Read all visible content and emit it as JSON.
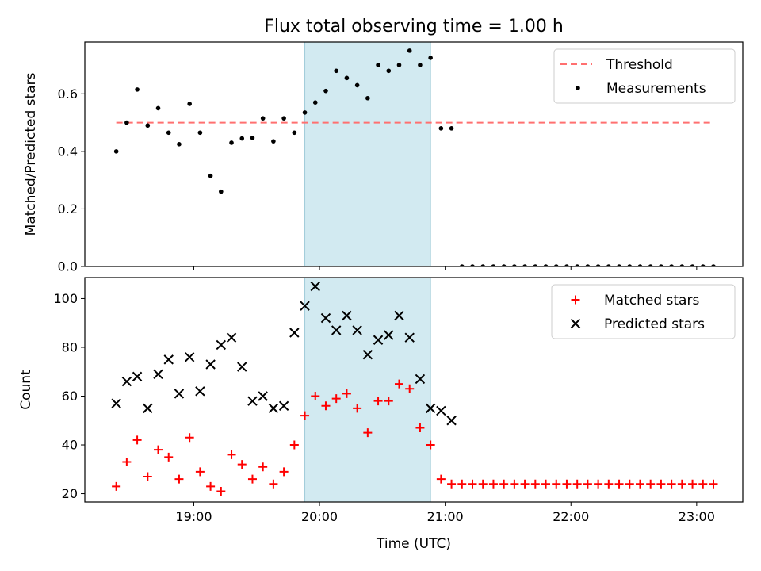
{
  "title": "Flux total observing time = 1.00 h",
  "colors": {
    "threshold": "#ff7070",
    "measurements": "#000000",
    "matched": "#ff0000",
    "predicted": "#000000",
    "highlight": "#add8e6"
  },
  "chart_data": [
    {
      "type": "scatter",
      "ylabel": "Matched/Predicted stars",
      "ylim": [
        0,
        0.78
      ],
      "yticks": [
        0.0,
        0.2,
        0.4,
        0.6
      ],
      "ytick_labels": [
        "0.0",
        "0.2",
        "0.4",
        "0.6"
      ],
      "xlim": [
        "18:08",
        "23:22"
      ],
      "highlight_span": [
        "19:53",
        "20:53"
      ],
      "legend_position": "top-right",
      "threshold": {
        "name": "Threshold",
        "value": 0.5,
        "x": [
          "18:23",
          "23:08"
        ]
      },
      "series": [
        {
          "name": "Measurements",
          "marker": "dot",
          "x": [
            "18:23",
            "18:28",
            "18:33",
            "18:38",
            "18:43",
            "18:48",
            "18:53",
            "18:58",
            "19:03",
            "19:08",
            "19:13",
            "19:18",
            "19:23",
            "19:28",
            "19:33",
            "19:38",
            "19:43",
            "19:48",
            "19:53",
            "19:58",
            "20:03",
            "20:08",
            "20:13",
            "20:18",
            "20:23",
            "20:28",
            "20:33",
            "20:38",
            "20:43",
            "20:48",
            "20:53",
            "20:58",
            "21:03",
            "21:08",
            "21:13",
            "21:18",
            "21:23",
            "21:28",
            "21:33",
            "21:38",
            "21:43",
            "21:48",
            "21:53",
            "21:58",
            "22:03",
            "22:08",
            "22:13",
            "22:18",
            "22:23",
            "22:28",
            "22:33",
            "22:38",
            "22:43",
            "22:48",
            "22:53",
            "22:58",
            "23:03",
            "23:08"
          ],
          "values": [
            0.4,
            0.5,
            0.615,
            0.49,
            0.55,
            0.465,
            0.425,
            0.565,
            0.465,
            0.315,
            0.26,
            0.43,
            0.445,
            0.447,
            0.515,
            0.435,
            0.515,
            0.465,
            0.535,
            0.57,
            0.61,
            0.68,
            0.655,
            0.63,
            0.585,
            0.7,
            0.68,
            0.7,
            0.75,
            0.7,
            0.725,
            0.48,
            0.48,
            0,
            0,
            0,
            0,
            0,
            0,
            0,
            0,
            0,
            0,
            0,
            0,
            0,
            0,
            0,
            0,
            0,
            0,
            0,
            0,
            0,
            0,
            0,
            0,
            0
          ]
        }
      ]
    },
    {
      "type": "scatter",
      "ylabel": "Count",
      "xlabel": "Time (UTC)",
      "ylim": [
        16.6,
        108.6
      ],
      "yticks": [
        20,
        40,
        60,
        80,
        100
      ],
      "ytick_labels": [
        "20",
        "40",
        "60",
        "80",
        "100"
      ],
      "xlim": [
        "18:08",
        "23:22"
      ],
      "xticks": [
        "19:00",
        "20:00",
        "21:00",
        "22:00",
        "23:00"
      ],
      "xtick_labels": [
        "19:00",
        "20:00",
        "21:00",
        "22:00",
        "23:00"
      ],
      "highlight_span": [
        "19:53",
        "20:53"
      ],
      "legend_position": "top-right",
      "series": [
        {
          "name": "Matched stars",
          "marker": "plus",
          "x": [
            "18:23",
            "18:28",
            "18:33",
            "18:38",
            "18:43",
            "18:48",
            "18:53",
            "18:58",
            "19:03",
            "19:08",
            "19:13",
            "19:18",
            "19:23",
            "19:28",
            "19:33",
            "19:38",
            "19:43",
            "19:48",
            "19:53",
            "19:58",
            "20:03",
            "20:08",
            "20:13",
            "20:18",
            "20:23",
            "20:28",
            "20:33",
            "20:38",
            "20:43",
            "20:48",
            "20:53",
            "20:58",
            "21:03",
            "21:08",
            "21:13",
            "21:18",
            "21:23",
            "21:28",
            "21:33",
            "21:38",
            "21:43",
            "21:48",
            "21:53",
            "21:58",
            "22:03",
            "22:08",
            "22:13",
            "22:18",
            "22:23",
            "22:28",
            "22:33",
            "22:38",
            "22:43",
            "22:48",
            "22:53",
            "22:58",
            "23:03",
            "23:08"
          ],
          "values": [
            23,
            33,
            42,
            27,
            38,
            35,
            26,
            43,
            29,
            23,
            21,
            36,
            32,
            26,
            31,
            24,
            29,
            40,
            52,
            60,
            56,
            59,
            61,
            55,
            45,
            58,
            58,
            65,
            63,
            47,
            40,
            26,
            24,
            24,
            24,
            24,
            24,
            24,
            24,
            24,
            24,
            24,
            24,
            24,
            24,
            24,
            24,
            24,
            24,
            24,
            24,
            24,
            24,
            24,
            24,
            24,
            24,
            24
          ]
        },
        {
          "name": "Predicted stars",
          "marker": "x",
          "x": [
            "18:23",
            "18:28",
            "18:33",
            "18:38",
            "18:43",
            "18:48",
            "18:53",
            "18:58",
            "19:03",
            "19:08",
            "19:13",
            "19:18",
            "19:23",
            "19:28",
            "19:33",
            "19:38",
            "19:43",
            "19:48",
            "19:53",
            "19:58",
            "20:03",
            "20:08",
            "20:13",
            "20:18",
            "20:23",
            "20:28",
            "20:33",
            "20:38",
            "20:43",
            "20:48",
            "20:53",
            "20:58",
            "21:03"
          ],
          "values": [
            57,
            66,
            68,
            55,
            69,
            75,
            61,
            76,
            62,
            73,
            81,
            84,
            72,
            58,
            60,
            55,
            56,
            86,
            97,
            105,
            92,
            87,
            93,
            87,
            77,
            83,
            85,
            93,
            84,
            67,
            55,
            54,
            50
          ]
        }
      ]
    }
  ]
}
